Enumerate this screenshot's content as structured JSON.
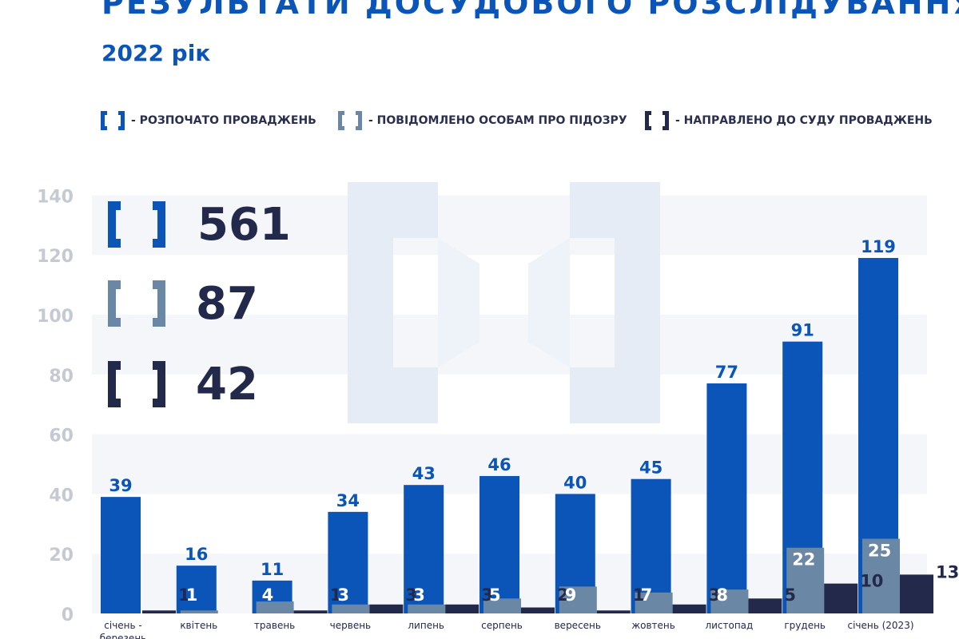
{
  "header": {
    "title": "РЕЗУЛЬТАТИ ДОСУДОВОГО РОЗСЛІДУВАННЯ",
    "subtitle": "2022 рік"
  },
  "legend": [
    {
      "label": "- РОЗПОЧАТО ПРОВАДЖЕНЬ",
      "color": "#0b55b8"
    },
    {
      "label": "- ПОВІДОМЛЕНО ОСОБАМ ПРО ПІДОЗРУ",
      "color": "#6a87a6"
    },
    {
      "label": "- НАПРАВЛЕНО ДО СУДУ ПРОВАДЖЕНЬ",
      "color": "#23294b"
    }
  ],
  "totals": [
    {
      "value": "561",
      "color": "#0b55b8"
    },
    {
      "value": "87",
      "color": "#6a87a6"
    },
    {
      "value": "42",
      "color": "#23294b"
    }
  ],
  "chart_data": {
    "type": "bar",
    "categories": [
      "січень - березень",
      "квітень",
      "травень",
      "червень",
      "липень",
      "серпень",
      "вересень",
      "жовтень",
      "листопад",
      "грудень",
      "січень (2023)"
    ],
    "series": [
      {
        "name": "- РОЗПОЧАТО ПРОВАДЖЕНЬ",
        "color": "#0b55b8",
        "values": [
          39,
          16,
          11,
          34,
          43,
          46,
          40,
          45,
          77,
          91,
          119
        ]
      },
      {
        "name": "- ПОВІДОМЛЕНО ОСОБАМ ПРО ПІДОЗРУ",
        "color": "#6a87a6",
        "values": [
          0,
          1,
          4,
          3,
          3,
          5,
          9,
          7,
          8,
          22,
          25
        ]
      },
      {
        "name": "- НАПРАВЛЕНО ДО СУДУ ПРОВАДЖЕНЬ",
        "color": "#23294b",
        "values": [
          1,
          0,
          1,
          3,
          3,
          2,
          1,
          3,
          5,
          10,
          13
        ]
      }
    ],
    "ylim": [
      0,
      140
    ],
    "yticks": [
      "0",
      "20",
      "40",
      "60",
      "80",
      "100",
      "120",
      "140"
    ],
    "grid": "alternating bands"
  }
}
